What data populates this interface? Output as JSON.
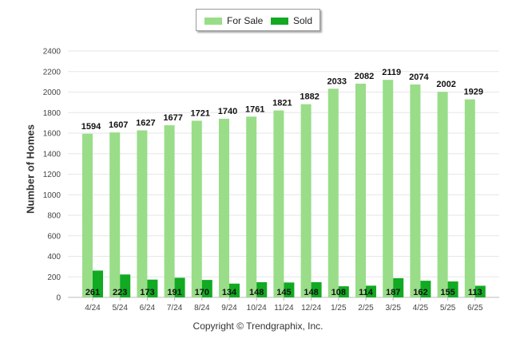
{
  "legend": {
    "for_sale_label": "For Sale",
    "sold_label": "Sold"
  },
  "footer": {
    "copyright": "Copyright © Trendgraphix, Inc."
  },
  "chart_data": {
    "type": "bar",
    "title": "",
    "xlabel": "",
    "ylabel": "Number of Homes",
    "ylim": [
      0,
      2400
    ],
    "yticks": [
      0,
      200,
      400,
      600,
      800,
      1000,
      1200,
      1400,
      1600,
      1800,
      2000,
      2200,
      2400
    ],
    "grid": true,
    "legend_position": "top-center",
    "categories": [
      "4/24",
      "5/24",
      "6/24",
      "7/24",
      "8/24",
      "9/24",
      "10/24",
      "11/24",
      "12/24",
      "1/25",
      "2/25",
      "3/25",
      "4/25",
      "5/25",
      "6/25"
    ],
    "series": [
      {
        "name": "For Sale",
        "color": "#99dd88",
        "values": [
          1594,
          1607,
          1627,
          1677,
          1721,
          1740,
          1761,
          1821,
          1882,
          2033,
          2082,
          2119,
          2074,
          2002,
          1929
        ]
      },
      {
        "name": "Sold",
        "color": "#11aa22",
        "values": [
          261,
          223,
          173,
          191,
          170,
          134,
          148,
          145,
          148,
          108,
          114,
          187,
          162,
          155,
          113
        ]
      }
    ]
  }
}
